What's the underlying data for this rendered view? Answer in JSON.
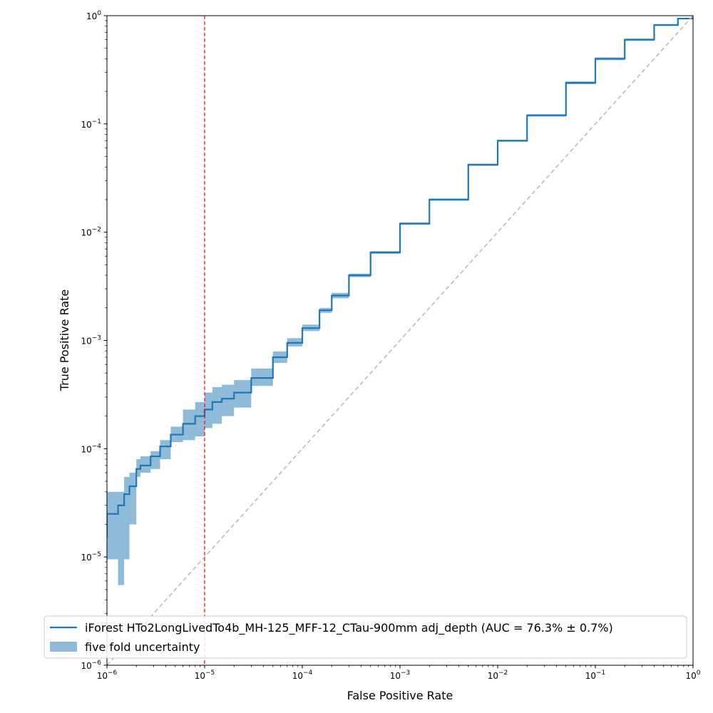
{
  "chart_data": {
    "type": "line",
    "title": "",
    "xlabel": "False Positive Rate",
    "ylabel": "True Positive Rate",
    "xscale": "log",
    "yscale": "log",
    "xlim": [
      1e-06,
      1
    ],
    "ylim": [
      1e-06,
      1
    ],
    "grid": false,
    "legend_location": "lower-right",
    "x_ticks": [
      {
        "value": 1e-06,
        "base": "10",
        "exp": "−6"
      },
      {
        "value": 1e-05,
        "base": "10",
        "exp": "−5"
      },
      {
        "value": 0.0001,
        "base": "10",
        "exp": "−4"
      },
      {
        "value": 0.001,
        "base": "10",
        "exp": "−3"
      },
      {
        "value": 0.01,
        "base": "10",
        "exp": "−2"
      },
      {
        "value": 0.1,
        "base": "10",
        "exp": "−1"
      },
      {
        "value": 1,
        "base": "10",
        "exp": "0"
      }
    ],
    "y_ticks": [
      {
        "value": 1e-06,
        "base": "10",
        "exp": "−6"
      },
      {
        "value": 1e-05,
        "base": "10",
        "exp": "−5"
      },
      {
        "value": 0.0001,
        "base": "10",
        "exp": "−4"
      },
      {
        "value": 0.001,
        "base": "10",
        "exp": "−3"
      },
      {
        "value": 0.01,
        "base": "10",
        "exp": "−2"
      },
      {
        "value": 0.1,
        "base": "10",
        "exp": "−1"
      },
      {
        "value": 1,
        "base": "10",
        "exp": "0"
      }
    ],
    "series": [
      {
        "name": "iForest HTo2LongLivedTo4b_MH-125_MFF-12_CTau-900mm adj_depth (AUC = 76.3% ± 0.7%)",
        "color": "#1f77b4",
        "style": "step",
        "x": [
          1e-06,
          1e-06,
          1.3e-06,
          1.5e-06,
          1.7e-06,
          2e-06,
          2.2e-06,
          2.8e-06,
          3.5e-06,
          4.5e-06,
          6e-06,
          8e-06,
          1e-05,
          1.2e-05,
          1.5e-05,
          2e-05,
          3e-05,
          5e-05,
          7e-05,
          0.0001,
          0.00015,
          0.0002,
          0.0003,
          0.0005,
          0.001,
          0.002,
          0.005,
          0.01,
          0.02,
          0.05,
          0.1,
          0.2,
          0.4,
          0.7,
          1.0
        ],
        "y": [
          1.5e-05,
          2.5e-05,
          3e-05,
          3.8e-05,
          4.5e-05,
          6.5e-05,
          7e-05,
          8.5e-05,
          0.000105,
          0.000135,
          0.00017,
          0.0002,
          0.00023,
          0.00027,
          0.00029,
          0.00033,
          0.00045,
          0.0007,
          0.00095,
          0.0013,
          0.0019,
          0.0026,
          0.004,
          0.0065,
          0.012,
          0.02,
          0.042,
          0.07,
          0.12,
          0.24,
          0.4,
          0.6,
          0.82,
          0.94,
          1.0
        ]
      },
      {
        "name": "diagonal",
        "color": "#bbbbbb",
        "style": "dashed",
        "x": [
          1e-06,
          1
        ],
        "y": [
          1e-06,
          1
        ]
      }
    ],
    "uncertainty_band": {
      "name": "five fold uncertainty",
      "color": "#1f77b4",
      "opacity": 0.5,
      "x": [
        1e-06,
        1.3e-06,
        1.5e-06,
        1.7e-06,
        2e-06,
        2.2e-06,
        2.8e-06,
        3.5e-06,
        4.5e-06,
        6e-06,
        8e-06,
        1e-05,
        1.2e-05,
        1.5e-05,
        2e-05,
        3e-05,
        5e-05,
        7e-05,
        0.0001,
        0.00015,
        0.0002,
        0.0003,
        0.0005,
        0.001,
        0.002,
        0.005,
        0.01,
        0.02,
        0.05,
        0.1,
        0.2,
        0.4,
        0.7,
        1.0
      ],
      "low": [
        9.5e-06,
        5.5e-06,
        9.5e-06,
        2e-05,
        5.5e-05,
        6e-05,
        6.5e-05,
        8e-05,
        0.000115,
        0.00012,
        0.00013,
        0.000155,
        0.00017,
        0.0002,
        0.00024,
        0.00038,
        0.00062,
        0.00088,
        0.00122,
        0.0018,
        0.00245,
        0.00385,
        0.0063,
        0.0117,
        0.0195,
        0.041,
        0.0685,
        0.117,
        0.233,
        0.388,
        0.585,
        0.805,
        0.93,
        1.0
      ],
      "high": [
        4e-05,
        4e-05,
        5.5e-05,
        6e-05,
        8e-05,
        8.5e-05,
        9.5e-05,
        0.00012,
        0.00016,
        0.00023,
        0.00027,
        0.00033,
        0.00037,
        0.00039,
        0.00043,
        0.00055,
        0.00079,
        0.00105,
        0.0014,
        0.002,
        0.00275,
        0.00415,
        0.0067,
        0.0123,
        0.0205,
        0.043,
        0.0715,
        0.123,
        0.247,
        0.412,
        0.615,
        0.835,
        0.95,
        1.0
      ]
    },
    "annotations": [
      {
        "type": "vline",
        "x": 1e-05,
        "color": "#ff0000",
        "style": "dashed"
      }
    ],
    "legend": [
      {
        "label": "iForest HTo2LongLivedTo4b_MH-125_MFF-12_CTau-900mm adj_depth (AUC = 76.3% ± 0.7%)",
        "kind": "line"
      },
      {
        "label": "five fold uncertainty",
        "kind": "patch"
      }
    ]
  }
}
